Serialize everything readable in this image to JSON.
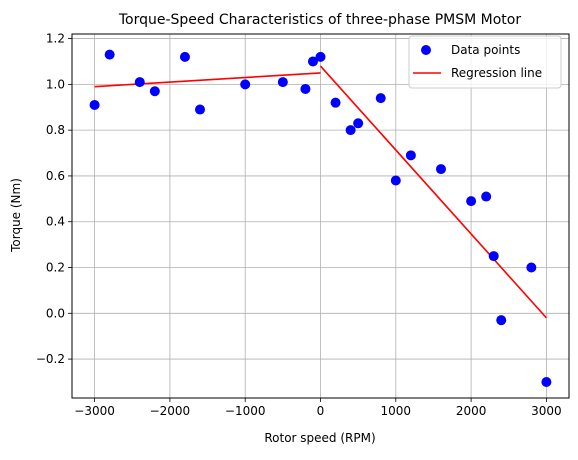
{
  "chart_data": {
    "type": "scatter",
    "title": "Torque-Speed Characteristics of three-phase PMSM Motor",
    "xlabel": "Rotor speed (RPM)",
    "ylabel": "Torque (Nm)",
    "xlim": [
      -3300,
      3300
    ],
    "ylim": [
      -0.37,
      1.22
    ],
    "x_ticks": [
      -3000,
      -2000,
      -1000,
      0,
      1000,
      2000,
      3000
    ],
    "x_tick_labels": [
      "−3000",
      "−2000",
      "−1000",
      "0",
      "1000",
      "2000",
      "3000"
    ],
    "y_ticks": [
      -0.2,
      0.0,
      0.2,
      0.4,
      0.6,
      0.8,
      1.0,
      1.2
    ],
    "y_tick_labels": [
      "−0.2",
      "0.0",
      "0.2",
      "0.4",
      "0.6",
      "0.8",
      "1.0",
      "1.2"
    ],
    "grid": true,
    "legend_position": "top-right",
    "series": [
      {
        "name": "Data points",
        "kind": "scatter",
        "color": "#0000ff",
        "x": [
          -3000,
          -2800,
          -2400,
          -2200,
          -1800,
          -1600,
          -1000,
          -500,
          -200,
          -100,
          0,
          200,
          400,
          500,
          800,
          1000,
          1200,
          1600,
          2000,
          2200,
          2300,
          2400,
          2800,
          3000
        ],
        "y": [
          0.91,
          1.13,
          1.01,
          0.97,
          1.12,
          0.89,
          1.0,
          1.01,
          0.98,
          1.1,
          1.12,
          0.92,
          0.8,
          0.83,
          0.94,
          0.58,
          0.69,
          0.63,
          0.49,
          0.51,
          0.25,
          -0.03,
          0.2,
          -0.3
        ]
      },
      {
        "name": "Regression line",
        "kind": "line",
        "color": "#ff0000",
        "segments": [
          {
            "x": [
              -3000,
              0
            ],
            "y": [
              0.99,
              1.05
            ]
          },
          {
            "x": [
              0,
              3000
            ],
            "y": [
              1.08,
              -0.02
            ]
          }
        ]
      }
    ]
  }
}
